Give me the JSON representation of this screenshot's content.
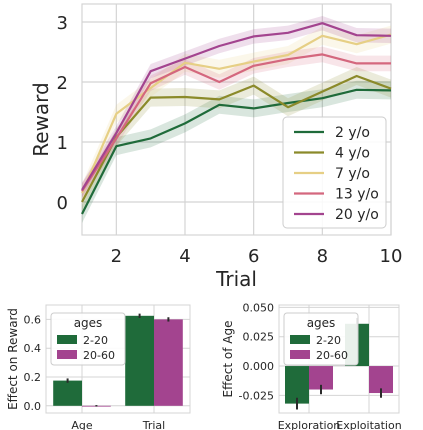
{
  "chart_data": [
    {
      "type": "line",
      "xlabel": "Trial",
      "ylabel": "Reward",
      "x": [
        1,
        2,
        3,
        4,
        5,
        6,
        7,
        8,
        9,
        10
      ],
      "xlim": [
        1,
        10
      ],
      "ylim": [
        -0.55,
        3.3
      ],
      "xticks": [
        2,
        4,
        6,
        8,
        10
      ],
      "yticks": [
        0,
        1,
        2,
        3
      ],
      "grid": true,
      "legend_position": "lower-right",
      "series": [
        {
          "name": "2 y/o",
          "color": "#1f6b3a",
          "values": [
            -0.2,
            0.93,
            1.06,
            1.31,
            1.62,
            1.56,
            1.65,
            1.73,
            1.87,
            1.86
          ],
          "band": 0.15
        },
        {
          "name": "4 y/o",
          "color": "#8b8a2a",
          "values": [
            0.0,
            1.08,
            1.74,
            1.75,
            1.71,
            1.94,
            1.58,
            1.84,
            2.1,
            1.89
          ],
          "band": 0.15
        },
        {
          "name": "7 y/o",
          "color": "#e6cf85",
          "values": [
            0.15,
            1.47,
            1.9,
            2.32,
            2.22,
            2.34,
            2.45,
            2.77,
            2.63,
            2.79
          ],
          "band": 0.15
        },
        {
          "name": "13 y/o",
          "color": "#d4677e",
          "values": [
            0.18,
            1.06,
            1.98,
            2.25,
            2.0,
            2.27,
            2.38,
            2.46,
            2.31,
            2.31
          ],
          "band": 0.13
        },
        {
          "name": "20 y/o",
          "color": "#a3448f",
          "values": [
            0.2,
            1.15,
            2.18,
            2.39,
            2.6,
            2.76,
            2.82,
            2.98,
            2.78,
            2.77
          ],
          "band": 0.12
        }
      ]
    },
    {
      "type": "bar",
      "ylabel": "Effect on Reward",
      "categories": [
        "Age",
        "Trial"
      ],
      "ylim": [
        -0.05,
        0.7
      ],
      "yticks": [
        "0.0",
        "0.2",
        "0.4",
        "0.6"
      ],
      "yticks_values": [
        0,
        0.2,
        0.4,
        0.6
      ],
      "legend_title": "ages",
      "legend_position": "upper-left",
      "series": [
        {
          "name": "2-20",
          "color": "#1f6b3a",
          "values": [
            0.175,
            0.625
          ],
          "err": [
            0.015,
            0.015
          ]
        },
        {
          "name": "20-60",
          "color": "#a3448f",
          "values": [
            0.0,
            0.6
          ],
          "err": [
            0.005,
            0.015
          ]
        }
      ]
    },
    {
      "type": "bar",
      "ylabel": "Effect of Age",
      "categories": [
        "Exploration",
        "Exploitation"
      ],
      "ylim": [
        -0.04,
        0.052
      ],
      "yticks": [
        "0.050",
        "0.025",
        "0.000",
        "-0.025"
      ],
      "yticks_values": [
        0.05,
        0.025,
        0,
        -0.025
      ],
      "legend_title": "ages",
      "legend_position": "upper-left",
      "series": [
        {
          "name": "2-20",
          "color": "#1f6b3a",
          "values": [
            -0.032,
            0.036
          ],
          "err": [
            0.005,
            0.005
          ]
        },
        {
          "name": "20-60",
          "color": "#a3448f",
          "values": [
            -0.02,
            -0.023
          ],
          "err": [
            0.004,
            0.004
          ]
        }
      ]
    }
  ]
}
